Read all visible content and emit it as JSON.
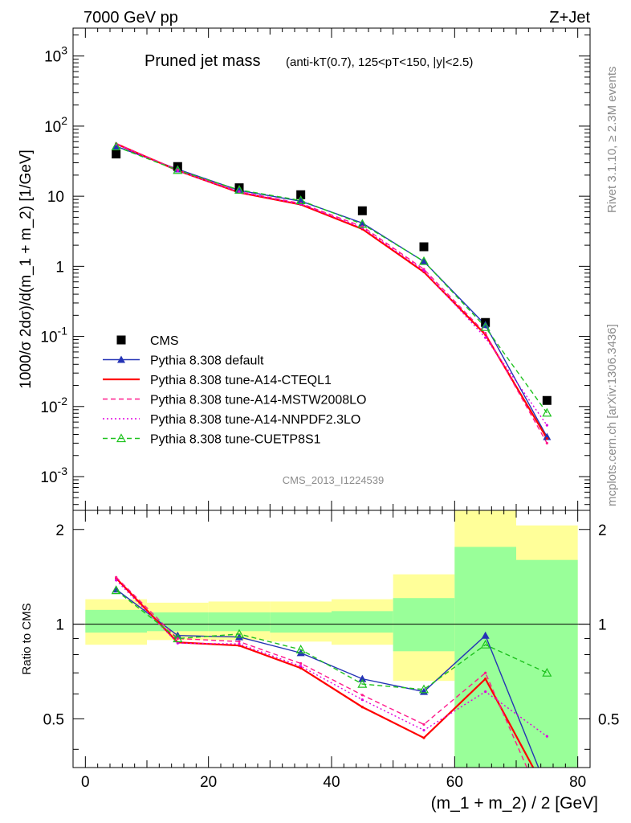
{
  "header": {
    "energy_label": "7000 GeV pp",
    "process_label": "Z+Jet"
  },
  "side_labels": {
    "rivet": "Rivet 3.1.10, ≥ 2.3M events",
    "source": "mcplots.cern.ch [arXiv:1306.3436]"
  },
  "chart_data": [
    {
      "type": "line",
      "panel": "main",
      "title": "Pruned jet mass",
      "subtitle": "(anti-kT(0.7), 125<pT<150, |y|<2.5)",
      "watermark": "CMS_2013_I1224539",
      "ylabel": "1000/σ 2dσ)/d(m_1 + m_2) [1/GeV]",
      "xlabel": "(m_1 + m_2) / 2 [GeV]",
      "xlim": [
        -2,
        82
      ],
      "ylim": [
        0.00033,
        2500
      ],
      "yscale": "log",
      "y_ticks": [
        "10^-3",
        "10^-2",
        "10^-1",
        "1",
        "10",
        "10^2",
        "10^3"
      ],
      "legend_position": "lower-left",
      "x": [
        5,
        15,
        25,
        35,
        45,
        55,
        65,
        75
      ],
      "series": [
        {
          "name": "CMS",
          "marker": "filled-square",
          "color": "#000000",
          "values": [
            40,
            26.5,
            13.2,
            10.5,
            6.2,
            1.9,
            0.158,
            0.0122
          ]
        },
        {
          "name": "Pythia 8.308 default",
          "marker": "filled-triangle",
          "line": "solid",
          "color": "#2433b5",
          "values": [
            51.5,
            24.3,
            12.1,
            8.5,
            4.15,
            1.17,
            0.146,
            0.0037
          ]
        },
        {
          "name": "Pythia 8.308 tune-A14-CTEQL1",
          "line": "solid",
          "color": "#ff0000",
          "values": [
            56,
            23.2,
            11.3,
            7.6,
            3.4,
            0.83,
            0.106,
            0.0035
          ]
        },
        {
          "name": "Pythia 8.308 tune-A14-MSTW2008LO",
          "line": "dashed",
          "color": "#ff1a8c",
          "values": [
            56.5,
            23.8,
            11.6,
            7.9,
            3.7,
            0.91,
            0.111,
            0.003
          ]
        },
        {
          "name": "Pythia 8.308 tune-A14-NNPDF2.3LO",
          "line": "dotted",
          "color": "#e000e0",
          "values": [
            55,
            23.0,
            11.4,
            7.7,
            3.55,
            0.87,
            0.096,
            0.0054
          ]
        },
        {
          "name": "Pythia 8.308 tune-CUETP8S1",
          "marker": "open-triangle",
          "line": "dashed",
          "color": "#1ec21e",
          "values": [
            51,
            23.5,
            12.3,
            8.7,
            4.0,
            1.18,
            0.135,
            0.0081
          ]
        }
      ]
    },
    {
      "type": "line",
      "panel": "ratio",
      "ylabel": "Ratio to CMS",
      "xlabel": "(m_1 + m_2) / 2 [GeV]",
      "xlim": [
        -2,
        82
      ],
      "ylim": [
        0.35,
        2.3
      ],
      "yscale": "log",
      "y_ticks": [
        "0.5",
        "1",
        "2"
      ],
      "x_ticks": [
        "0",
        "20",
        "40",
        "60",
        "80"
      ],
      "bins": [
        [
          0,
          10
        ],
        [
          10,
          20
        ],
        [
          20,
          30
        ],
        [
          30,
          40
        ],
        [
          40,
          50
        ],
        [
          50,
          60
        ],
        [
          60,
          70
        ],
        [
          70,
          80
        ]
      ],
      "band_inner": [
        [
          0.94,
          1.11
        ],
        [
          0.95,
          1.09
        ],
        [
          0.95,
          1.09
        ],
        [
          0.94,
          1.09
        ],
        [
          0.94,
          1.1
        ],
        [
          0.82,
          1.21
        ],
        [
          0.35,
          1.76
        ],
        [
          0.35,
          1.6
        ]
      ],
      "band_outer": [
        [
          0.86,
          1.2
        ],
        [
          0.89,
          1.17
        ],
        [
          0.89,
          1.18
        ],
        [
          0.88,
          1.18
        ],
        [
          0.86,
          1.2
        ],
        [
          0.66,
          1.44
        ],
        [
          0.35,
          2.3
        ],
        [
          0.35,
          2.06
        ]
      ],
      "x": [
        5,
        15,
        25,
        35,
        45,
        55,
        65,
        75
      ],
      "series": [
        {
          "name": "Pythia 8.308 default",
          "values": [
            1.29,
            0.92,
            0.91,
            0.81,
            0.67,
            0.61,
            0.92,
            0.3
          ]
        },
        {
          "name": "Pythia 8.308 tune-A14-CTEQL1",
          "values": [
            1.4,
            0.875,
            0.855,
            0.725,
            0.545,
            0.435,
            0.67,
            0.29
          ]
        },
        {
          "name": "Pythia 8.308 tune-A14-MSTW2008LO",
          "values": [
            1.41,
            0.9,
            0.88,
            0.75,
            0.595,
            0.48,
            0.7,
            0.25
          ]
        },
        {
          "name": "Pythia 8.308 tune-A14-NNPDF2.3LO",
          "values": [
            1.38,
            0.87,
            0.865,
            0.735,
            0.575,
            0.46,
            0.61,
            0.44
          ]
        },
        {
          "name": "Pythia 8.308 tune-CUETP8S1",
          "values": [
            1.28,
            0.9,
            0.93,
            0.83,
            0.645,
            0.62,
            0.86,
            0.7
          ]
        }
      ]
    }
  ]
}
